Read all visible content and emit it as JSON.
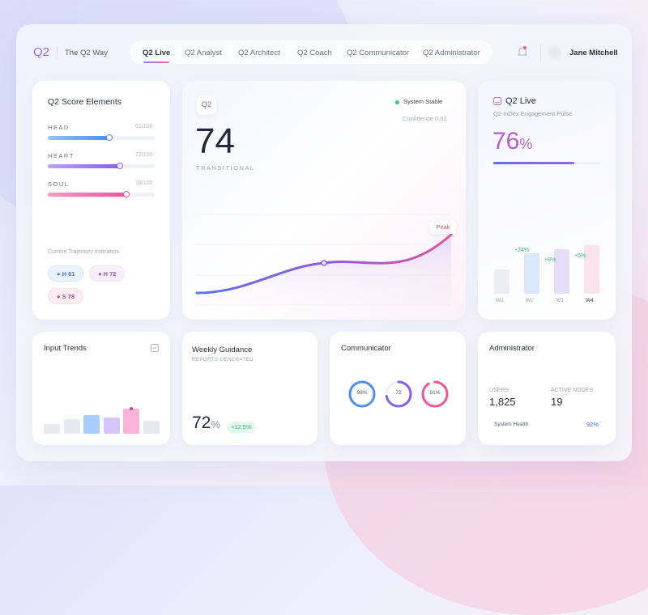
{
  "header": {
    "logo": "Q2",
    "tagline": "The Q2 Way",
    "tabs": [
      {
        "label": "Q2 Live",
        "active": true
      },
      {
        "label": "Q2 Analyst"
      },
      {
        "label": "Q2 Architect"
      },
      {
        "label": "Q2 Coach"
      },
      {
        "label": "Q2 Communicator"
      },
      {
        "label": "Q2 Administrator"
      }
    ],
    "user": "Jane Mitchell",
    "icons": {
      "bell": "bell-icon",
      "avatar": "avatar"
    }
  },
  "score": {
    "title": "Q2 Score Elements",
    "items": [
      {
        "label": "HEAD",
        "value": "61/100",
        "pct": 61,
        "color": "#4f8ff0"
      },
      {
        "label": "HEART",
        "value": "72/100",
        "pct": 72,
        "color": "#8b5cf0"
      },
      {
        "label": "SOUL",
        "value": "78/100",
        "pct": 78,
        "color": "#f0559a"
      }
    ],
    "trajectory_label": "Current Trajectory Indicators",
    "chips": [
      "H 61",
      "H 72",
      "S 78"
    ]
  },
  "main": {
    "badge": "Q2",
    "score": "74",
    "state": "TRANSITIONAL",
    "status": "System Stable",
    "confidence": "Confidence 0.82",
    "peak_label": "Peak"
  },
  "live": {
    "title": "Q2 Live",
    "subtitle": "Q2 InDex Engagement Pulse",
    "value": "76",
    "unit": "%",
    "progress": 76,
    "weeks": [
      {
        "label": "W1",
        "level": 30
      },
      {
        "label": "W2",
        "level": 50,
        "delta": "+24%"
      },
      {
        "label": "W3",
        "level": 55,
        "delta": "+8%"
      },
      {
        "label": "W4",
        "level": 60,
        "delta": "+5%"
      }
    ]
  },
  "trends": {
    "title": "Input Trends",
    "bars": [
      12,
      18,
      23,
      20,
      31,
      16
    ],
    "colors": [
      "#e6e9ef",
      "#e6e9ef",
      "#a9cdfb",
      "#d6c3fb",
      "#f8b3d6",
      "#e6e9ef"
    ]
  },
  "guidance": {
    "title": "Weekly Guidance",
    "subtitle": "REPORTS GENERATED",
    "value": "72",
    "unit": "%",
    "delta": "+12.5%"
  },
  "communicator": {
    "title": "Communicator",
    "rings": [
      {
        "label": "98%",
        "pct": 98,
        "color": "#4f8ff0"
      },
      {
        "label": "72",
        "pct": 72,
        "color": "#8b5cf0"
      },
      {
        "label": "91%",
        "pct": 91,
        "color": "#f0559a"
      }
    ]
  },
  "admin": {
    "title": "Administrator",
    "users_label": "USERS",
    "users": "1,825",
    "nodes_label": "ACTIVE NODES",
    "nodes": "19",
    "health_label": "System Health",
    "health": "92%"
  }
}
